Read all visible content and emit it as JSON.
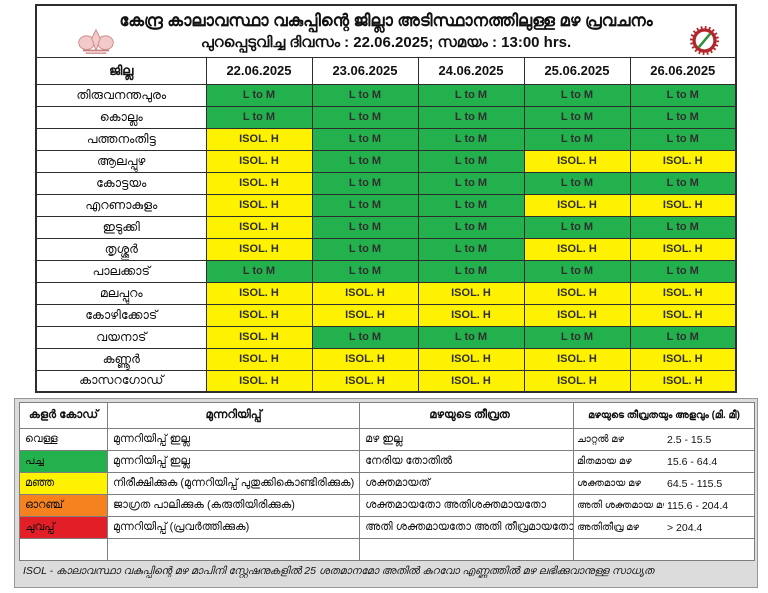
{
  "title": {
    "line1": "കേന്ദ്ര കാലാവസ്ഥാ വകുപ്പിന്റെ ജില്ലാ അടിസ്ഥാനത്തിലുള്ള മഴ പ്രവചനം",
    "line2": "പുറപ്പെടുവിച്ച ദിവസം : 22.06.2025; സമയം : 13:00 hrs."
  },
  "icons": {
    "left_logo": "kerala-govt-emblem",
    "right_logo": "imd-emblem"
  },
  "colors": {
    "green": "#22B14C",
    "yellow": "#FFF200",
    "orange": "#F6821F",
    "red": "#E21F26",
    "white": "#FFFFFF"
  },
  "cell_colors": {
    "L to M": "green",
    "ISOL. H": "yellow"
  },
  "forecast_table": {
    "district_header": "ജില്ല",
    "dates": [
      "22.06.2025",
      "23.06.2025",
      "24.06.2025",
      "25.06.2025",
      "26.06.2025"
    ],
    "rows": [
      {
        "district": "തിരുവനന്തപുരം",
        "values": [
          "L to M",
          "L to M",
          "L to M",
          "L to M",
          "L to M"
        ]
      },
      {
        "district": "കൊല്ലം",
        "values": [
          "L to M",
          "L to M",
          "L to M",
          "L to M",
          "L to M"
        ]
      },
      {
        "district": "പത്തനംതിട്ട",
        "values": [
          "ISOL. H",
          "L to M",
          "L to M",
          "L to M",
          "L to M"
        ]
      },
      {
        "district": "ആലപ്പുഴ",
        "values": [
          "ISOL. H",
          "L to M",
          "L to M",
          "ISOL. H",
          "ISOL. H"
        ]
      },
      {
        "district": "കോട്ടയം",
        "values": [
          "ISOL. H",
          "L to M",
          "L to M",
          "L to M",
          "L to M"
        ]
      },
      {
        "district": "എറണാകുളം",
        "values": [
          "ISOL. H",
          "L to M",
          "L to M",
          "ISOL. H",
          "ISOL. H"
        ]
      },
      {
        "district": "ഇടുക്കി",
        "values": [
          "ISOL. H",
          "L to M",
          "L to M",
          "L to M",
          "L to M"
        ]
      },
      {
        "district": "തൃശ്ശൂർ",
        "values": [
          "ISOL. H",
          "L to M",
          "L to M",
          "ISOL. H",
          "ISOL. H"
        ]
      },
      {
        "district": "പാലക്കാട്",
        "values": [
          "L to M",
          "L to M",
          "L to M",
          "L to M",
          "L to M"
        ]
      },
      {
        "district": "മലപ്പുറം",
        "values": [
          "ISOL. H",
          "ISOL. H",
          "ISOL. H",
          "ISOL. H",
          "ISOL. H"
        ]
      },
      {
        "district": "കോഴിക്കോട്",
        "values": [
          "ISOL. H",
          "ISOL. H",
          "ISOL. H",
          "ISOL. H",
          "ISOL. H"
        ]
      },
      {
        "district": "വയനാട്",
        "values": [
          "ISOL. H",
          "L to M",
          "L to M",
          "L to M",
          "L to M"
        ]
      },
      {
        "district": "കണ്ണൂർ",
        "values": [
          "ISOL. H",
          "ISOL. H",
          "ISOL. H",
          "ISOL. H",
          "ISOL. H"
        ]
      },
      {
        "district": "കാസറഗോഡ്",
        "values": [
          "ISOL. H",
          "ISOL. H",
          "ISOL. H",
          "ISOL. H",
          "ISOL. H"
        ]
      }
    ]
  },
  "legend": {
    "left": {
      "col_headers": [
        "കളർ കോഡ്",
        "മുന്നറിയിപ്പ്",
        "മഴയുടെ തീവ്രത"
      ],
      "rows": [
        {
          "name": "വെള്ള",
          "color": "white",
          "warning": "മുന്നറിയിപ്പ് ഇല്ല",
          "intensity": "മഴ ഇല്ല"
        },
        {
          "name": "പച്ച",
          "color": "green",
          "warning": "മുന്നറിയിപ്പ് ഇല്ല",
          "intensity": "നേരിയ തോതിൽ"
        },
        {
          "name": "മഞ്ഞ",
          "color": "yellow",
          "warning": "നിരീക്ഷിക്കുക (മുന്നറിയിപ്പ് പുതുക്കികൊണ്ടിരിക്കുക)",
          "intensity": "ശക്തമായത്"
        },
        {
          "name": "ഓറഞ്ച്",
          "color": "orange",
          "warning": "ജാഗ്രത പാലിക്കുക (കരുതിയിരിക്കുക)",
          "intensity": "ശക്തമായതോ അതിശക്തമായതോ"
        },
        {
          "name": "ചുവപ്പ്",
          "color": "red",
          "warning": "മുന്നറിയിപ്പ് (പ്രവർത്തിക്കുക)",
          "intensity": "അതി ശക്തമായതോ അതി തീവ്രമായതോ"
        }
      ]
    },
    "right": {
      "header": "മഴയുടെ തീവ്രതയും അളവും (മി. മീ)",
      "rows": [
        {
          "label": "ചാറ്റൽ മഴ",
          "range": "2.5 - 15.5"
        },
        {
          "label": "മിതമായ മഴ",
          "range": "15.6 - 64.4"
        },
        {
          "label": "ശക്തമായ മഴ",
          "range": "64.5 - 115.5"
        },
        {
          "label": "അതി ശക്തമായ മഴ",
          "range": "115.6 - 204.4"
        },
        {
          "label": "അതിതീവ്ര മഴ",
          "range": "> 204.4"
        }
      ]
    }
  },
  "footnote": "ISOL - കാലാവസ്ഥാ വകുപ്പിന്റെ മഴ മാപിനി സ്റ്റേഷനുകളിൽ 25 ശതമാനമോ അതിൽ കുറവോ എണ്ണത്തിൽ മഴ ലഭിക്കുവാനുള്ള സാധ്യത"
}
